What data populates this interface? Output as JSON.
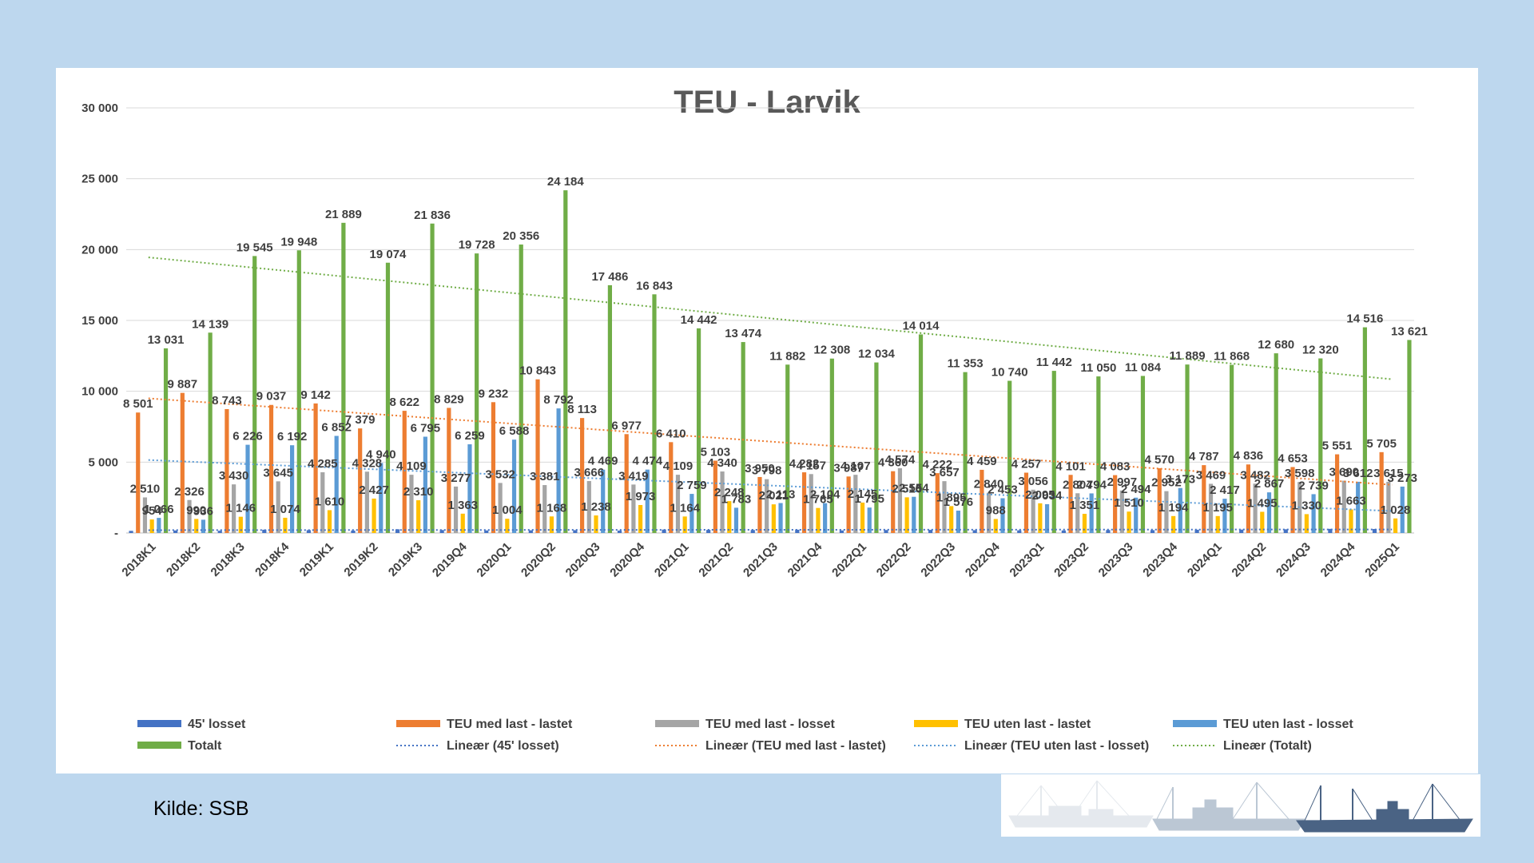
{
  "chart_data": {
    "type": "bar",
    "title": "TEU - Larvik",
    "categories": [
      "2018K1",
      "2018K2",
      "2018K3",
      "2018K4",
      "2019K1",
      "2019K2",
      "2019K3",
      "2019Q4",
      "2020Q1",
      "2020Q2",
      "2020Q3",
      "2020Q4",
      "2021Q1",
      "2021Q2",
      "2021Q3",
      "2021Q4",
      "2022Q1",
      "2022Q2",
      "2022Q3",
      "2022Q4",
      "2023Q1",
      "2023Q2",
      "2023Q3",
      "2023Q4",
      "2024Q1",
      "2024Q2",
      "2024Q3",
      "2024Q4",
      "2025Q1"
    ],
    "ylim": [
      0,
      30000
    ],
    "y_ticks": [
      {
        "value": 0,
        "label": "-"
      },
      {
        "value": 5000,
        "label": "5 000"
      },
      {
        "value": 10000,
        "label": "10 000"
      },
      {
        "value": 15000,
        "label": "15 000"
      },
      {
        "value": 20000,
        "label": "20 000"
      },
      {
        "value": 25000,
        "label": "25 000"
      },
      {
        "value": 30000,
        "label": "30 000"
      }
    ],
    "grid": true,
    "legend_position": "bottom",
    "series": [
      {
        "name": "45' losset",
        "color": "#4472c4",
        "values": [
          150,
          180,
          160,
          230,
          200,
          170,
          260,
          210,
          180,
          190,
          200,
          170,
          240,
          220,
          210,
          230,
          180,
          210,
          220,
          200,
          190,
          180,
          210,
          200,
          230,
          240,
          260,
          290,
          280
        ]
      },
      {
        "name": "TEU med last - lastet",
        "color": "#ed7d31",
        "values": [
          8501,
          9887,
          8743,
          9037,
          9142,
          7379,
          8622,
          8829,
          9232,
          10843,
          8113,
          6977,
          6410,
          5103,
          3950,
          4282,
          3987,
          4360,
          4222,
          4459,
          4257,
          4101,
          4083,
          4570,
          4787,
          4836,
          4653,
          5551,
          5705
        ],
        "labels": [
          "8 501",
          "9 887",
          "8 743",
          "9 037",
          "9 142",
          "7 379",
          "8 622",
          "8 829",
          "9 232",
          "10 843",
          "8 113",
          "6 977",
          "6 410",
          "5 103",
          "3 950",
          "4 282",
          "3 987",
          "4 360",
          "4 222",
          "4 459",
          "4 257",
          "4 101",
          "4 083",
          "4 570",
          "4 787",
          "4 836",
          "4 653",
          "5 551",
          "5 705"
        ]
      },
      {
        "name": "TEU med last - losset",
        "color": "#a5a5a5",
        "values": [
          2510,
          2326,
          3430,
          3645,
          4285,
          4328,
          4109,
          3277,
          3532,
          3381,
          3666,
          3419,
          4109,
          4340,
          3798,
          4157,
          4107,
          4574,
          3657,
          2840,
          3056,
          2804,
          2997,
          2952,
          3469,
          3482,
          3598,
          3690,
          3615
        ],
        "labels": [
          "2 510",
          "2 326",
          "3 430",
          "3 645",
          "4 285",
          "4 328",
          "4 109",
          "3 277",
          "3 532",
          "3 381",
          "3 666",
          "3 419",
          "4 109",
          "4 340",
          "3 798",
          "4 157",
          "4 107",
          "4 574",
          "3 657",
          "2 840",
          "3 056",
          "2 804",
          "2 997",
          "2 952",
          "3 469",
          "3 482",
          "3 598",
          "3 690",
          "3 615"
        ]
      },
      {
        "name": "TEU uten last - lastet",
        "color": "#ffc000",
        "values": [
          954,
          990,
          1146,
          1074,
          1610,
          2427,
          2310,
          1363,
          1004,
          1168,
          1238,
          1973,
          1164,
          2248,
          2021,
          1765,
          2145,
          2516,
          1895,
          988,
          2095,
          1351,
          1510,
          1194,
          1195,
          1495,
          1330,
          1663,
          1028
        ],
        "labels": [
          "954",
          "990",
          "1 146",
          "1 074",
          "1 610",
          "2 427",
          "2 310",
          "1 363",
          "1 004",
          "1 168",
          "1 238",
          "1 973",
          "1 164",
          "2 248",
          "2 021",
          "1 765",
          "2 145",
          "2 516",
          "1 895",
          "988",
          "2 095",
          "1 351",
          "1 510",
          "1 194",
          "1 195",
          "1 495",
          "1 330",
          "1 663",
          "1 028"
        ]
      },
      {
        "name": "TEU uten last - losset",
        "color": "#5b9bd5",
        "values": [
          1066,
          936,
          6226,
          6192,
          6852,
          4940,
          6795,
          6259,
          6588,
          8792,
          4469,
          4474,
          2759,
          1783,
          2113,
          2104,
          1795,
          2554,
          1576,
          2453,
          2034,
          2794,
          2494,
          3173,
          2417,
          2867,
          2739,
          3612,
          3273
        ],
        "labels": [
          "1 066",
          "936",
          "6 226",
          "6 192",
          "6 852",
          "4 940",
          "6 795",
          "6 259",
          "6 588",
          "8 792",
          "4 469",
          "4 474",
          "2 759",
          "1 783",
          "2 113",
          "2 104",
          "1 795",
          "2 554",
          "1 576",
          "2 453",
          "2 034",
          "2 794",
          "2 494",
          "3 173",
          "2 417",
          "2 867",
          "2 739",
          "3 612",
          "3 273"
        ]
      },
      {
        "name": "Totalt",
        "color": "#70ad47",
        "values": [
          13031,
          14139,
          19545,
          19948,
          21889,
          19074,
          21836,
          19728,
          20356,
          24184,
          17486,
          16843,
          14442,
          13474,
          11882,
          12308,
          12034,
          14014,
          11353,
          10740,
          11442,
          11050,
          11084,
          11889,
          11868,
          12680,
          12320,
          14516,
          13621
        ],
        "labels": [
          "13 031",
          "14 139",
          "19 545",
          "19 948",
          "21 889",
          "19 074",
          "21 836",
          "19 728",
          "20 356",
          "24 184",
          "17 486",
          "16 843",
          "14 442",
          "13 474",
          "11 882",
          "12 308",
          "12 034",
          "14 014",
          "11 353",
          "10 740",
          "11 442",
          "11 050",
          "11 084",
          "11 889",
          "11 868",
          "12 680",
          "12 320",
          "14 516",
          "13 621"
        ]
      }
    ],
    "trendlines": [
      {
        "name": "Lineær (45' losset)",
        "color": "#4472c4",
        "start": 200,
        "end": 250
      },
      {
        "name": "Lineær (TEU med last - lastet)",
        "color": "#ed7d31",
        "start": 9500,
        "end": 3400
      },
      {
        "name": "Lineær (TEU uten last - losset)",
        "color": "#5b9bd5",
        "start": 5150,
        "end": 1550
      },
      {
        "name": "Lineær (Totalt)",
        "color": "#70ad47",
        "start": 19450,
        "end": 10850
      }
    ]
  },
  "source": "Kilde: SSB",
  "colors": {
    "background": "#bdd7ee",
    "panel": "#ffffff",
    "gridline": "#d9d9d9"
  }
}
